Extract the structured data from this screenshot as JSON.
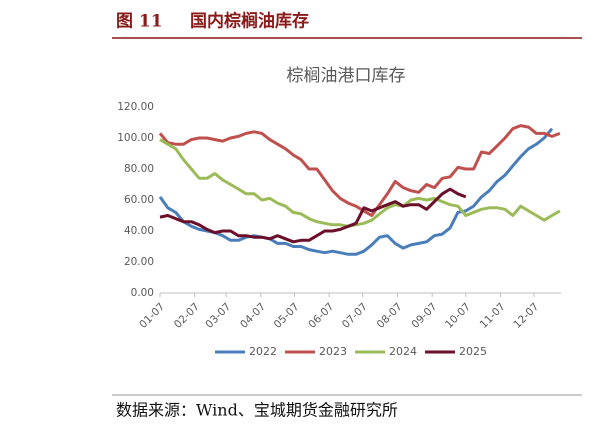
{
  "header": {
    "figure_label": "图 11",
    "title": "国内棕榈油库存"
  },
  "source": "数据来源：Wind、宝城期货金融研究所",
  "chart_data": {
    "type": "line",
    "title": "棕榈油港口库存",
    "x": [
      "01-07",
      "01-14",
      "01-21",
      "01-28",
      "02-04",
      "02-11",
      "02-18",
      "02-25",
      "03-04",
      "03-11",
      "03-18",
      "03-25",
      "04-01",
      "04-08",
      "04-15",
      "04-22",
      "04-29",
      "05-06",
      "05-13",
      "05-20",
      "05-27",
      "06-03",
      "06-10",
      "06-17",
      "06-24",
      "07-01",
      "07-08",
      "07-15",
      "07-22",
      "07-29",
      "08-05",
      "08-12",
      "08-19",
      "08-26",
      "09-02",
      "09-09",
      "09-16",
      "09-23",
      "09-30",
      "10-07",
      "10-14",
      "10-21",
      "10-28",
      "11-04",
      "11-11",
      "11-18",
      "11-25",
      "12-02",
      "12-09",
      "12-16",
      "12-23",
      "12-30"
    ],
    "xlim": [
      "01-07",
      "12-31"
    ],
    "xticks": [
      "01-07",
      "02-07",
      "03-07",
      "04-07",
      "05-07",
      "06-07",
      "07-07",
      "08-07",
      "09-07",
      "10-07",
      "11-07",
      "12-07"
    ],
    "ylim": [
      0,
      120
    ],
    "yticks": [
      {
        "value": 0,
        "label": "0.00"
      },
      {
        "value": 20,
        "label": "20.00"
      },
      {
        "value": 40,
        "label": "40.00"
      },
      {
        "value": 60,
        "label": "60.00"
      },
      {
        "value": 80,
        "label": "80.00"
      },
      {
        "value": 100,
        "label": "100.00"
      },
      {
        "value": 120,
        "label": "120.00"
      }
    ],
    "grid": false,
    "legend": "bottom",
    "series": [
      {
        "name": "2022",
        "color": "#4a7ebb",
        "values": [
          62,
          55,
          52,
          46,
          43,
          41,
          40,
          39,
          37,
          34,
          34,
          36,
          37,
          36,
          35,
          32,
          32,
          30,
          30,
          28,
          27,
          26,
          27,
          26,
          25,
          25,
          27,
          31,
          36,
          37,
          32,
          29,
          31,
          32,
          33,
          37,
          38,
          42,
          52,
          53,
          56,
          62,
          66,
          72,
          76,
          82,
          88,
          93,
          96,
          100,
          106,
          null
        ]
      },
      {
        "name": "2023",
        "color": "#c0504d",
        "values": [
          103,
          97,
          96,
          96,
          99,
          100,
          100,
          99,
          98,
          100,
          101,
          103,
          104,
          103,
          99,
          96,
          93,
          89,
          86,
          80,
          80,
          73,
          66,
          61,
          58,
          56,
          53,
          50,
          57,
          64,
          72,
          68,
          66,
          65,
          70,
          68,
          74,
          75,
          81,
          80,
          80,
          91,
          90,
          95,
          100,
          106,
          108,
          107,
          103,
          103,
          101,
          103
        ]
      },
      {
        "name": "2024",
        "color": "#9bbb59",
        "values": [
          99,
          96,
          93,
          86,
          80,
          74,
          74,
          77,
          73,
          70,
          67,
          64,
          64,
          60,
          61,
          58,
          56,
          52,
          51,
          48,
          46,
          45,
          44,
          44,
          43,
          44,
          45,
          47,
          51,
          55,
          57,
          56,
          60,
          61,
          60,
          61,
          59,
          57,
          56,
          50,
          52,
          54,
          55,
          55,
          54,
          50,
          56,
          53,
          50,
          47,
          50,
          53
        ]
      },
      {
        "name": "2025",
        "color": "#6b0f2a",
        "values": [
          49,
          50,
          48,
          46,
          46,
          44,
          41,
          39,
          40,
          40,
          37,
          37,
          36,
          36,
          35,
          37,
          35,
          33,
          34,
          34,
          37,
          40,
          40,
          41,
          43,
          45,
          55,
          53,
          55,
          57,
          59,
          56,
          57,
          57,
          54,
          59,
          64,
          67,
          64,
          62,
          null,
          null,
          null,
          null,
          null,
          null,
          null,
          null,
          null,
          null,
          null,
          null
        ]
      }
    ]
  }
}
